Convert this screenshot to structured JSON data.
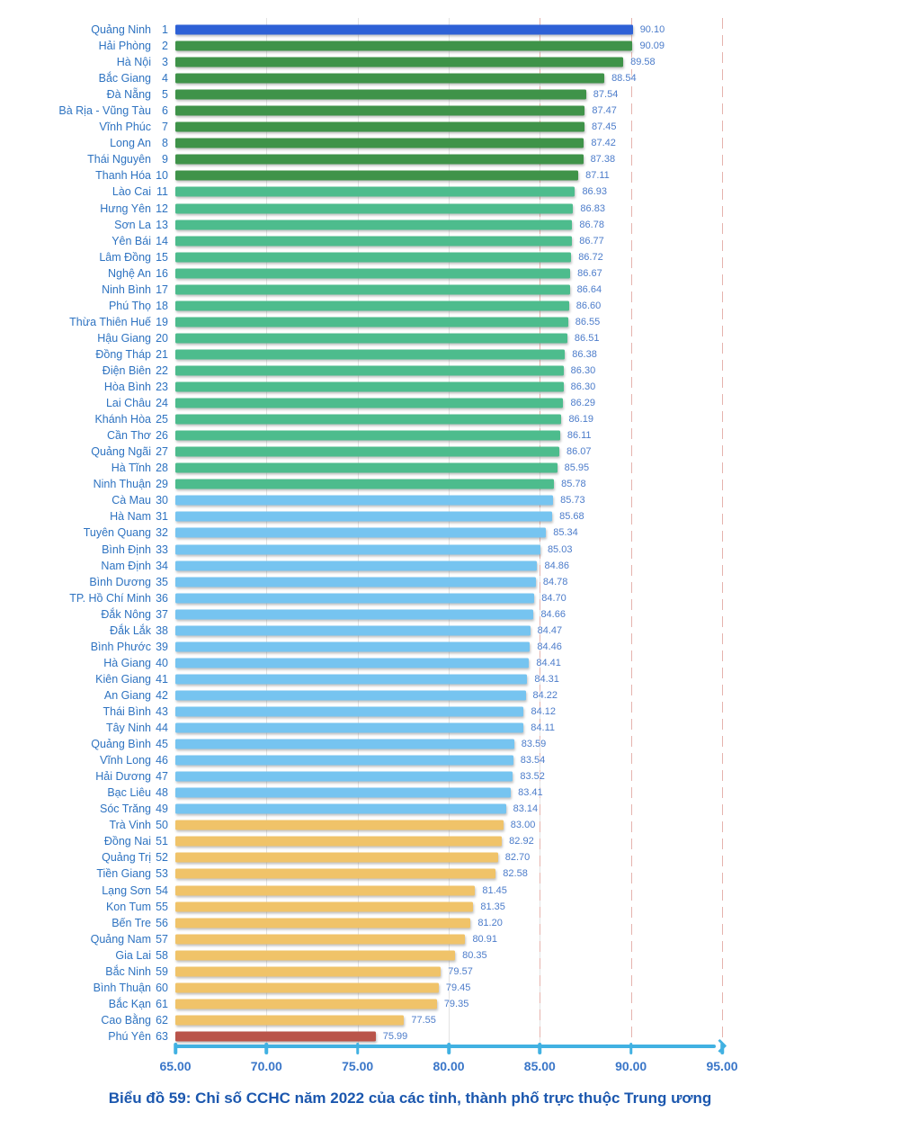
{
  "chart_data": {
    "type": "bar",
    "orientation": "horizontal",
    "title": "Biểu đồ 59: Chỉ số CCHC năm 2022 của các tỉnh, thành phố trực thuộc Trung ương",
    "x_axis": {
      "min": 65,
      "max": 95,
      "ticks": [
        "65.00",
        "70.00",
        "75.00",
        "80.00",
        "85.00",
        "90.00",
        "95.00"
      ]
    },
    "gridlines": {
      "solid_at": [
        70,
        75,
        80,
        85
      ],
      "dashed_at": [
        85,
        90,
        95
      ]
    },
    "colors": {
      "blue": "#2e61d6",
      "dark_green": "#3f9349",
      "green": "#4dbc8d",
      "light_blue": "#76c4f0",
      "yellow": "#f0c369",
      "red": "#b9544a",
      "axis_line": "#41b1e2",
      "tick_label_text": "#3a76c8",
      "province_label_text": "#2e73c1",
      "value_label_text": "#4c7cca",
      "title_text": "#1b57ae",
      "grid_solid": "#e3e3e3",
      "grid_dashed": "#e6b3ad"
    },
    "bars": [
      {
        "rank": 1,
        "name": "Quảng Ninh",
        "value": 90.1,
        "label": "90.10",
        "group": "blue"
      },
      {
        "rank": 2,
        "name": "Hải Phòng",
        "value": 90.09,
        "label": "90.09",
        "group": "dark_green"
      },
      {
        "rank": 3,
        "name": "Hà Nội",
        "value": 89.58,
        "label": "89.58",
        "group": "dark_green"
      },
      {
        "rank": 4,
        "name": "Bắc Giang",
        "value": 88.54,
        "label": "88.54",
        "group": "dark_green"
      },
      {
        "rank": 5,
        "name": "Đà Nẵng",
        "value": 87.54,
        "label": "87.54",
        "group": "dark_green"
      },
      {
        "rank": 6,
        "name": "Bà Rịa - Vũng Tàu",
        "value": 87.47,
        "label": "87.47",
        "group": "dark_green"
      },
      {
        "rank": 7,
        "name": "Vĩnh Phúc",
        "value": 87.45,
        "label": "87.45",
        "group": "dark_green"
      },
      {
        "rank": 8,
        "name": "Long An",
        "value": 87.42,
        "label": "87.42",
        "group": "dark_green"
      },
      {
        "rank": 9,
        "name": "Thái Nguyên",
        "value": 87.38,
        "label": "87.38",
        "group": "dark_green"
      },
      {
        "rank": 10,
        "name": "Thanh Hóa",
        "value": 87.11,
        "label": "87.11",
        "group": "dark_green"
      },
      {
        "rank": 11,
        "name": "Lào Cai",
        "value": 86.93,
        "label": "86.93",
        "group": "green"
      },
      {
        "rank": 12,
        "name": "Hưng Yên",
        "value": 86.83,
        "label": "86.83",
        "group": "green"
      },
      {
        "rank": 13,
        "name": "Sơn La",
        "value": 86.78,
        "label": "86.78",
        "group": "green"
      },
      {
        "rank": 14,
        "name": "Yên Bái",
        "value": 86.77,
        "label": "86.77",
        "group": "green"
      },
      {
        "rank": 15,
        "name": "Lâm Đồng",
        "value": 86.72,
        "label": "86.72",
        "group": "green"
      },
      {
        "rank": 16,
        "name": "Nghệ An",
        "value": 86.67,
        "label": "86.67",
        "group": "green"
      },
      {
        "rank": 17,
        "name": "Ninh Bình",
        "value": 86.64,
        "label": "86.64",
        "group": "green"
      },
      {
        "rank": 18,
        "name": "Phú Thọ",
        "value": 86.6,
        "label": "86.60",
        "group": "green"
      },
      {
        "rank": 19,
        "name": "Thừa Thiên Huế",
        "value": 86.55,
        "label": "86.55",
        "group": "green"
      },
      {
        "rank": 20,
        "name": "Hậu Giang",
        "value": 86.51,
        "label": "86.51",
        "group": "green"
      },
      {
        "rank": 21,
        "name": "Đồng Tháp",
        "value": 86.38,
        "label": "86.38",
        "group": "green"
      },
      {
        "rank": 22,
        "name": "Điện Biên",
        "value": 86.3,
        "label": "86.30",
        "group": "green"
      },
      {
        "rank": 23,
        "name": "Hòa Bình",
        "value": 86.3,
        "label": "86.30",
        "group": "green"
      },
      {
        "rank": 24,
        "name": "Lai Châu",
        "value": 86.29,
        "label": "86.29",
        "group": "green"
      },
      {
        "rank": 25,
        "name": "Khánh Hòa",
        "value": 86.19,
        "label": "86.19",
        "group": "green"
      },
      {
        "rank": 26,
        "name": "Cần Thơ",
        "value": 86.11,
        "label": "86.11",
        "group": "green"
      },
      {
        "rank": 27,
        "name": "Quảng Ngãi",
        "value": 86.07,
        "label": "86.07",
        "group": "green"
      },
      {
        "rank": 28,
        "name": "Hà Tĩnh",
        "value": 85.95,
        "label": "85.95",
        "group": "green"
      },
      {
        "rank": 29,
        "name": "Ninh Thuận",
        "value": 85.78,
        "label": "85.78",
        "group": "green"
      },
      {
        "rank": 30,
        "name": "Cà Mau",
        "value": 85.73,
        "label": "85.73",
        "group": "light_blue"
      },
      {
        "rank": 31,
        "name": "Hà Nam",
        "value": 85.68,
        "label": "85.68",
        "group": "light_blue"
      },
      {
        "rank": 32,
        "name": "Tuyên Quang",
        "value": 85.34,
        "label": "85.34",
        "group": "light_blue"
      },
      {
        "rank": 33,
        "name": "Bình Định",
        "value": 85.03,
        "label": "85.03",
        "group": "light_blue"
      },
      {
        "rank": 34,
        "name": "Nam Định",
        "value": 84.86,
        "label": "84.86",
        "group": "light_blue"
      },
      {
        "rank": 35,
        "name": "Bình Dương",
        "value": 84.78,
        "label": "84.78",
        "group": "light_blue"
      },
      {
        "rank": 36,
        "name": "TP. Hồ Chí Minh",
        "value": 84.7,
        "label": "84.70",
        "group": "light_blue"
      },
      {
        "rank": 37,
        "name": "Đắk Nông",
        "value": 84.66,
        "label": "84.66",
        "group": "light_blue"
      },
      {
        "rank": 38,
        "name": "Đắk Lắk",
        "value": 84.47,
        "label": "84.47",
        "group": "light_blue"
      },
      {
        "rank": 39,
        "name": "Bình Phước",
        "value": 84.46,
        "label": "84.46",
        "group": "light_blue"
      },
      {
        "rank": 40,
        "name": "Hà Giang",
        "value": 84.41,
        "label": "84.41",
        "group": "light_blue"
      },
      {
        "rank": 41,
        "name": "Kiên Giang",
        "value": 84.31,
        "label": "84.31",
        "group": "light_blue"
      },
      {
        "rank": 42,
        "name": "An Giang",
        "value": 84.22,
        "label": "84.22",
        "group": "light_blue"
      },
      {
        "rank": 43,
        "name": "Thái Bình",
        "value": 84.12,
        "label": "84.12",
        "group": "light_blue"
      },
      {
        "rank": 44,
        "name": "Tây Ninh",
        "value": 84.11,
        "label": "84.11",
        "group": "light_blue"
      },
      {
        "rank": 45,
        "name": "Quảng Bình",
        "value": 83.59,
        "label": "83.59",
        "group": "light_blue"
      },
      {
        "rank": 46,
        "name": "Vĩnh Long",
        "value": 83.54,
        "label": "83.54",
        "group": "light_blue"
      },
      {
        "rank": 47,
        "name": "Hải Dương",
        "value": 83.52,
        "label": "83.52",
        "group": "light_blue"
      },
      {
        "rank": 48,
        "name": "Bạc Liêu",
        "value": 83.41,
        "label": "83.41",
        "group": "light_blue"
      },
      {
        "rank": 49,
        "name": "Sóc Trăng",
        "value": 83.14,
        "label": "83.14",
        "group": "light_blue"
      },
      {
        "rank": 50,
        "name": "Trà Vinh",
        "value": 83.0,
        "label": "83.00",
        "group": "yellow"
      },
      {
        "rank": 51,
        "name": "Đồng Nai",
        "value": 82.92,
        "label": "82.92",
        "group": "yellow"
      },
      {
        "rank": 52,
        "name": "Quảng Trị",
        "value": 82.7,
        "label": "82.70",
        "group": "yellow"
      },
      {
        "rank": 53,
        "name": "Tiền Giang",
        "value": 82.58,
        "label": "82.58",
        "group": "yellow"
      },
      {
        "rank": 54,
        "name": "Lạng Sơn",
        "value": 81.45,
        "label": "81.45",
        "group": "yellow"
      },
      {
        "rank": 55,
        "name": "Kon Tum",
        "value": 81.35,
        "label": "81.35",
        "group": "yellow"
      },
      {
        "rank": 56,
        "name": "Bến Tre",
        "value": 81.2,
        "label": "81.20",
        "group": "yellow"
      },
      {
        "rank": 57,
        "name": "Quảng Nam",
        "value": 80.91,
        "label": "80.91",
        "group": "yellow"
      },
      {
        "rank": 58,
        "name": "Gia Lai",
        "value": 80.35,
        "label": "80.35",
        "group": "yellow"
      },
      {
        "rank": 59,
        "name": "Bắc Ninh",
        "value": 79.57,
        "label": "79.57",
        "group": "yellow"
      },
      {
        "rank": 60,
        "name": "Bình Thuận",
        "value": 79.45,
        "label": "79.45",
        "group": "yellow"
      },
      {
        "rank": 61,
        "name": "Bắc Kạn",
        "value": 79.35,
        "label": "79.35",
        "group": "yellow"
      },
      {
        "rank": 62,
        "name": "Cao Bằng",
        "value": 77.55,
        "label": "77.55",
        "group": "yellow"
      },
      {
        "rank": 63,
        "name": "Phú Yên",
        "value": 75.99,
        "label": "75.99",
        "group": "red"
      }
    ]
  }
}
